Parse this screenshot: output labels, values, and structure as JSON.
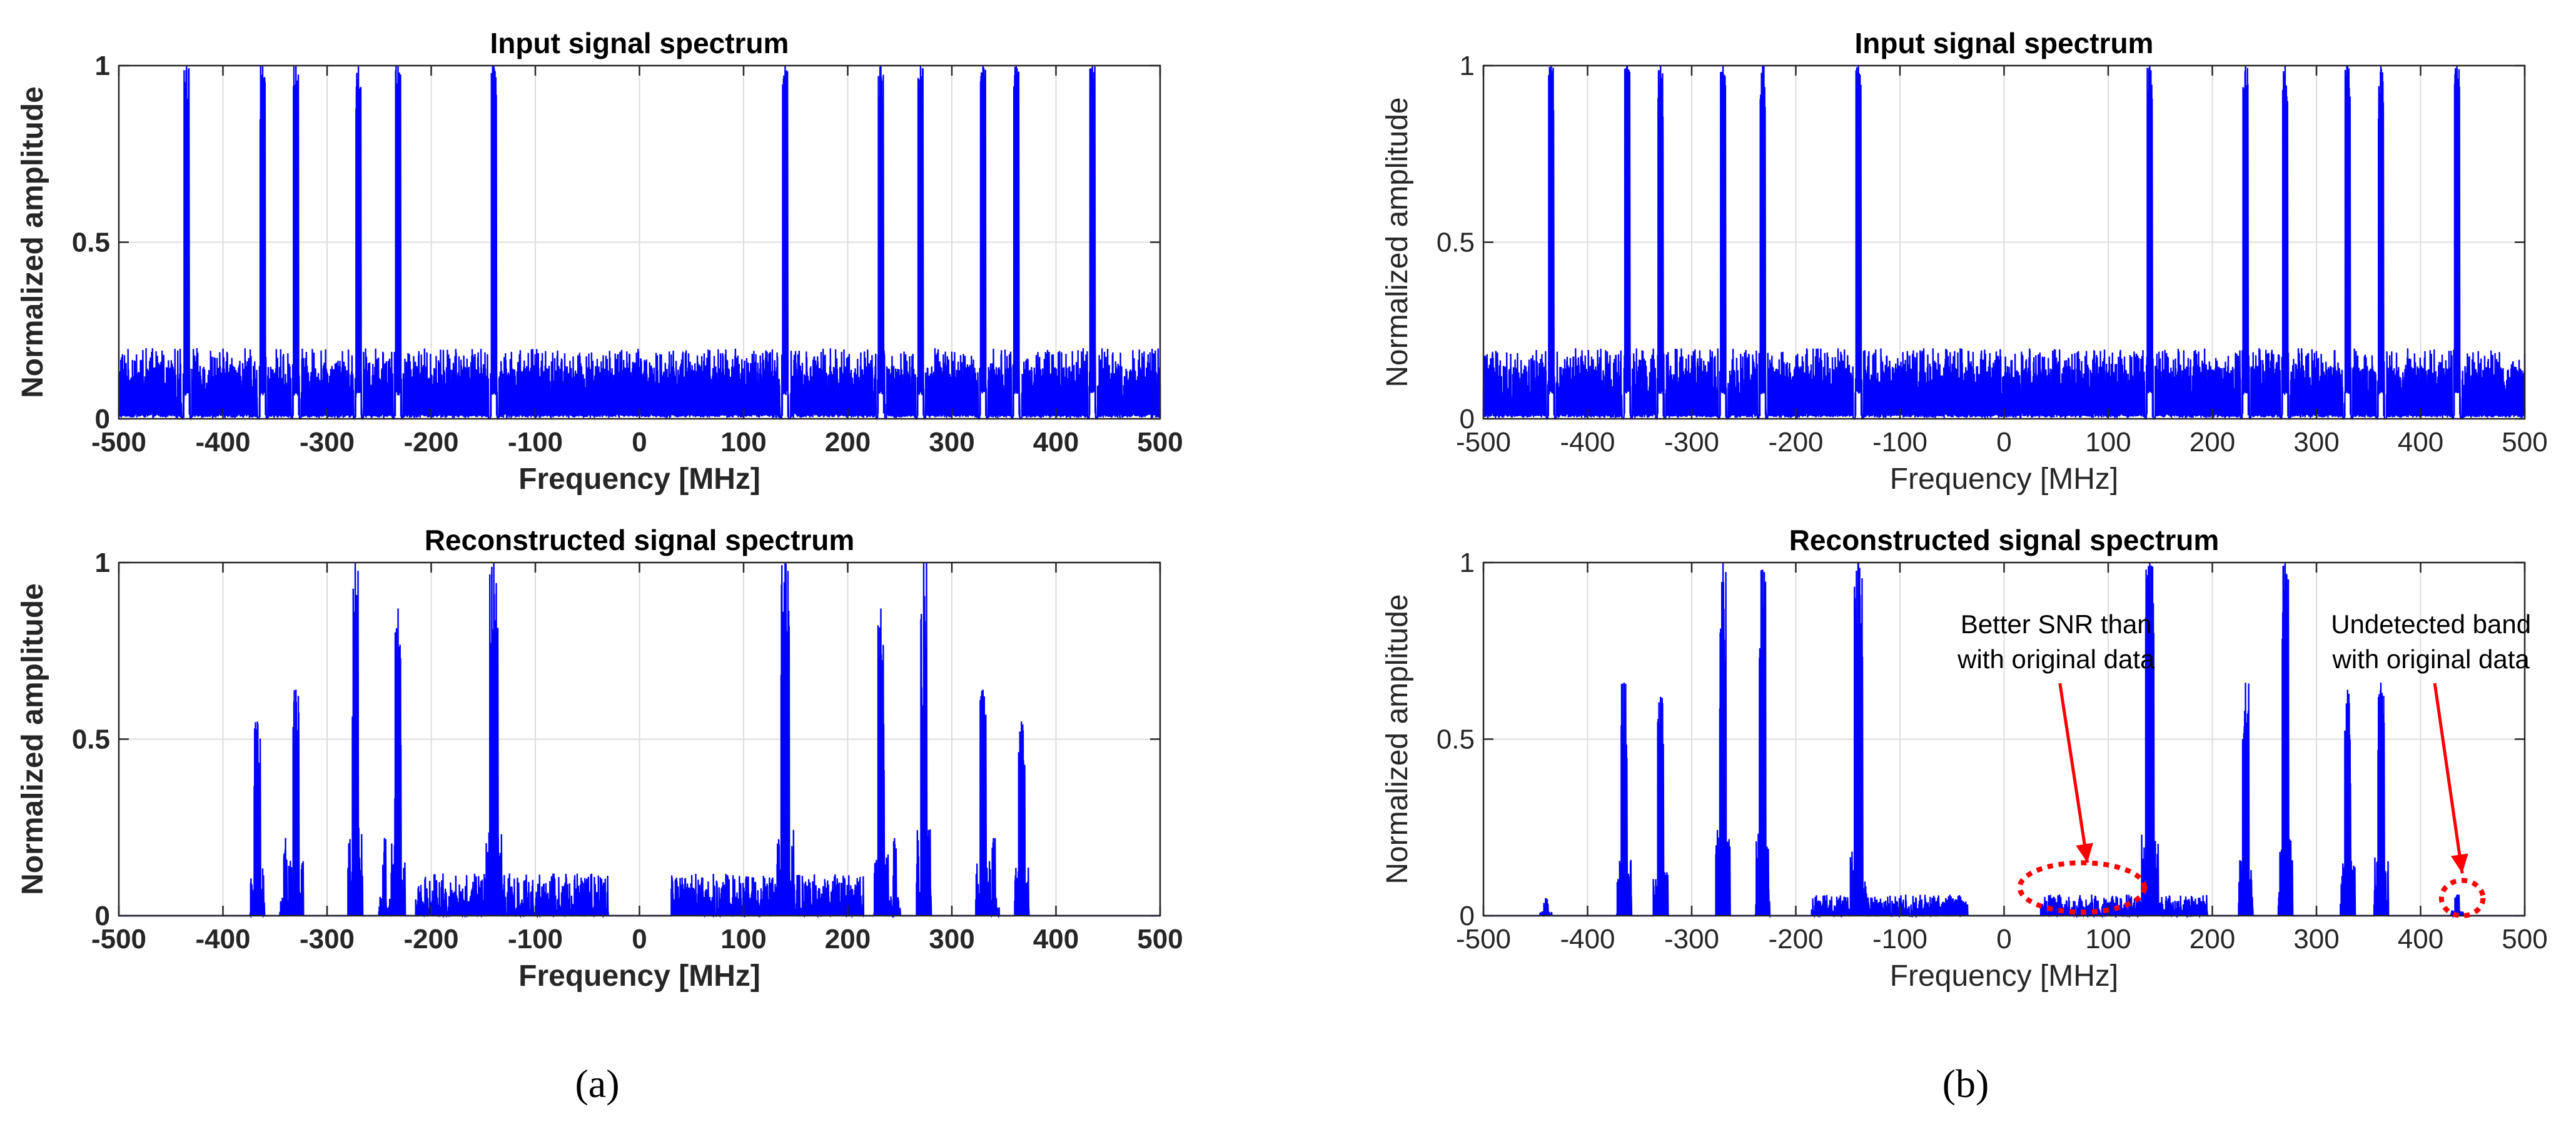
{
  "figure": {
    "panel_a_label": "(a)",
    "panel_b_label": "(b)"
  },
  "chart_data": [
    {
      "id": "a_top",
      "type": "line",
      "panel": "a",
      "title": "Input signal spectrum",
      "xlabel": "Frequency [MHz]",
      "ylabel": "Normalized amplitude",
      "xlim": [
        -500,
        500
      ],
      "ylim": [
        0,
        1
      ],
      "xticks": [
        -500,
        -400,
        -300,
        -200,
        -100,
        0,
        100,
        200,
        300,
        400,
        500
      ],
      "yticks": [
        0,
        0.5,
        1
      ],
      "grid": true,
      "bold_labels": true,
      "series": [
        {
          "name": "spectrum",
          "color": "#0000ff"
        }
      ],
      "noise_floor": [
        0,
        0.2
      ],
      "bands": [
        {
          "center": -435,
          "width": 5,
          "amp": 1.0
        },
        {
          "center": -362,
          "width": 5,
          "amp": 1.0
        },
        {
          "center": -330,
          "width": 5,
          "amp": 1.0
        },
        {
          "center": -270,
          "width": 5,
          "amp": 1.0
        },
        {
          "center": -232,
          "width": 5,
          "amp": 1.0
        },
        {
          "center": -140,
          "width": 5,
          "amp": 1.0
        },
        {
          "center": 140,
          "width": 5,
          "amp": 1.0
        },
        {
          "center": 232,
          "width": 5,
          "amp": 1.0
        },
        {
          "center": 270,
          "width": 5,
          "amp": 1.0
        },
        {
          "center": 330,
          "width": 5,
          "amp": 1.0
        },
        {
          "center": 362,
          "width": 5,
          "amp": 1.0
        },
        {
          "center": 435,
          "width": 5,
          "amp": 1.0
        }
      ]
    },
    {
      "id": "a_bottom",
      "type": "line",
      "panel": "a",
      "title": "Reconstructed signal spectrum",
      "xlabel": "Frequency [MHz]",
      "ylabel": "Normalized amplitude",
      "xlim": [
        -500,
        500
      ],
      "ylim": [
        0,
        1
      ],
      "xticks": [
        -500,
        -400,
        -300,
        -200,
        -100,
        0,
        100,
        200,
        300,
        400,
        500
      ],
      "yticks": [
        0,
        0.5,
        1
      ],
      "grid": true,
      "bold_labels": true,
      "series": [
        {
          "name": "spectrum",
          "color": "#0000ff"
        }
      ],
      "bands": [
        {
          "center": -367,
          "width": 6,
          "amp": 0.55
        },
        {
          "center": -340,
          "width": 3,
          "amp": 0.22
        },
        {
          "center": -330,
          "width": 6,
          "amp": 0.64
        },
        {
          "center": -273,
          "width": 6,
          "amp": 1.0
        },
        {
          "center": -245,
          "width": 3,
          "amp": 0.22
        },
        {
          "center": -232,
          "width": 6,
          "amp": 0.87
        },
        {
          "center": -140,
          "width": 8,
          "amp": 1.0
        },
        {
          "center": 140,
          "width": 8,
          "amp": 1.0
        },
        {
          "center": 232,
          "width": 6,
          "amp": 0.87
        },
        {
          "center": 245,
          "width": 3,
          "amp": 0.22
        },
        {
          "center": 273,
          "width": 6,
          "amp": 1.0
        },
        {
          "center": 330,
          "width": 6,
          "amp": 0.64
        },
        {
          "center": 340,
          "width": 3,
          "amp": 0.22
        },
        {
          "center": 367,
          "width": 6,
          "amp": 0.55
        }
      ],
      "noise_regions": [
        {
          "from": -215,
          "to": -30,
          "max": 0.12
        },
        {
          "from": 30,
          "to": 215,
          "max": 0.12
        }
      ]
    },
    {
      "id": "b_top",
      "type": "line",
      "panel": "b",
      "title": "Input signal spectrum",
      "xlabel": "Frequency [MHz]",
      "ylabel": "Normalized amplitude",
      "xlim": [
        -500,
        500
      ],
      "ylim": [
        0,
        1
      ],
      "xticks": [
        -500,
        -400,
        -300,
        -200,
        -100,
        0,
        100,
        200,
        300,
        400,
        500
      ],
      "yticks": [
        0,
        0.5,
        1
      ],
      "grid": true,
      "bold_labels": false,
      "series": [
        {
          "name": "spectrum",
          "color": "#0000ff"
        }
      ],
      "noise_floor": [
        0,
        0.2
      ],
      "bands": [
        {
          "center": -435,
          "width": 5,
          "amp": 1.0
        },
        {
          "center": -362,
          "width": 5,
          "amp": 1.0
        },
        {
          "center": -330,
          "width": 5,
          "amp": 1.0
        },
        {
          "center": -270,
          "width": 5,
          "amp": 1.0
        },
        {
          "center": -232,
          "width": 5,
          "amp": 1.0
        },
        {
          "center": -140,
          "width": 5,
          "amp": 1.0
        },
        {
          "center": 140,
          "width": 5,
          "amp": 1.0
        },
        {
          "center": 232,
          "width": 5,
          "amp": 1.0
        },
        {
          "center": 270,
          "width": 5,
          "amp": 1.0
        },
        {
          "center": 330,
          "width": 5,
          "amp": 1.0
        },
        {
          "center": 362,
          "width": 5,
          "amp": 1.0
        },
        {
          "center": 435,
          "width": 5,
          "amp": 1.0
        }
      ]
    },
    {
      "id": "b_bottom",
      "type": "line",
      "panel": "b",
      "title": "Reconstructed signal spectrum",
      "xlabel": "Frequency [MHz]",
      "ylabel": "Normalized amplitude",
      "xlim": [
        -500,
        500
      ],
      "ylim": [
        0,
        1
      ],
      "xticks": [
        -500,
        -400,
        -300,
        -200,
        -100,
        0,
        100,
        200,
        300,
        400,
        500
      ],
      "yticks": [
        0,
        0.5,
        1
      ],
      "grid": true,
      "bold_labels": false,
      "series": [
        {
          "name": "spectrum",
          "color": "#0000ff"
        }
      ],
      "bands": [
        {
          "center": -440,
          "width": 4,
          "amp": 0.05
        },
        {
          "center": -365,
          "width": 6,
          "amp": 0.66
        },
        {
          "center": -330,
          "width": 6,
          "amp": 0.62
        },
        {
          "center": -270,
          "width": 6,
          "amp": 1.0
        },
        {
          "center": -232,
          "width": 6,
          "amp": 0.98
        },
        {
          "center": -140,
          "width": 8,
          "amp": 1.0
        },
        {
          "center": 140,
          "width": 8,
          "amp": 1.0
        },
        {
          "center": 232,
          "width": 6,
          "amp": 0.66
        },
        {
          "center": 270,
          "width": 6,
          "amp": 1.0
        },
        {
          "center": 330,
          "width": 6,
          "amp": 0.64
        },
        {
          "center": 362,
          "width": 6,
          "amp": 0.66
        },
        {
          "center": 435,
          "width": 4,
          "amp": 0.06
        }
      ],
      "noise_regions": [
        {
          "from": -185,
          "to": -35,
          "max": 0.06
        },
        {
          "from": 35,
          "to": 195,
          "max": 0.06
        }
      ],
      "annotations": [
        {
          "lines": [
            "Better SNR than",
            "with original data"
          ],
          "text_x": 50,
          "text_y": 0.8,
          "arrow_to": [
            80,
            0.15
          ],
          "ellipse": {
            "cx": 75,
            "cy": 0.08,
            "rx": 60,
            "ry": 0.07
          },
          "color": "#ff0000"
        },
        {
          "lines": [
            "Undetected band",
            "with original data"
          ],
          "text_x": 410,
          "text_y": 0.8,
          "arrow_to": [
            440,
            0.12
          ],
          "ellipse": {
            "cx": 440,
            "cy": 0.05,
            "rx": 20,
            "ry": 0.05
          },
          "color": "#ff0000"
        }
      ]
    }
  ]
}
